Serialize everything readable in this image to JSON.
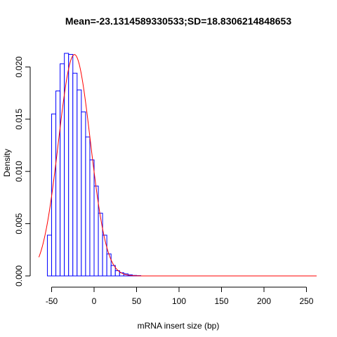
{
  "chart_data": {
    "type": "bar",
    "title": "Mean=-23.1314589330533;SD=18.8306214848653",
    "xlabel": "mRNA insert size (bp)",
    "ylabel": "Density",
    "xlim": [
      -62,
      262
    ],
    "ylim": [
      0,
      0.0215
    ],
    "x_ticks": [
      -50,
      0,
      50,
      100,
      150,
      200,
      250
    ],
    "y_ticks": [
      0.0,
      0.005,
      0.01,
      0.015,
      0.02
    ],
    "x_tick_labels": [
      "-50",
      "0",
      "50",
      "100",
      "150",
      "200",
      "250"
    ],
    "y_tick_labels": [
      "0.000",
      "0.005",
      "0.010",
      "0.015",
      "0.020"
    ],
    "histogram": {
      "bin_width": 5,
      "bin_starts": [
        -55,
        -50,
        -45,
        -40,
        -35,
        -30,
        -25,
        -20,
        -15,
        -10,
        -5,
        0,
        5,
        10,
        15,
        20,
        25,
        30,
        35,
        40,
        45,
        50
      ],
      "densities": [
        0.0039,
        0.0155,
        0.0177,
        0.0203,
        0.0213,
        0.0212,
        0.0194,
        0.0178,
        0.0157,
        0.0133,
        0.0111,
        0.0086,
        0.006,
        0.0039,
        0.0021,
        0.001,
        0.0005,
        0.0003,
        0.0002,
        0.0001,
        5e-05,
        3e-05
      ],
      "border_color": "#0000ff",
      "fill_color": "#ffffff"
    },
    "normal_curve": {
      "mean": -23.1314589330533,
      "sd": 18.8306214848653,
      "x_range": [
        -65,
        262
      ],
      "color": "#ff0000"
    },
    "grid": false,
    "legend": "none"
  }
}
